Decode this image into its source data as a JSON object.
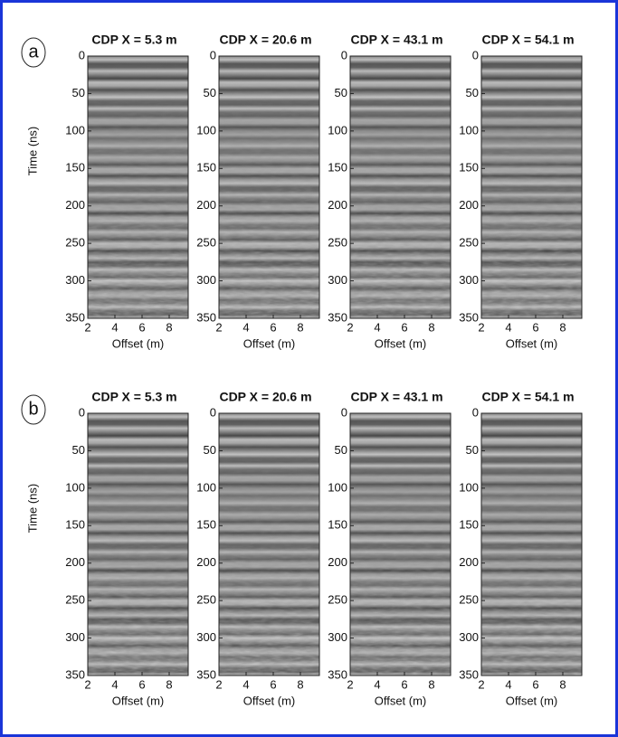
{
  "chart_data": [
    {
      "type": "image",
      "panel_label": "a",
      "title": "CDP X = 5.3 m",
      "xlabel": "Offset (m)",
      "ylabel": "Time (ns)",
      "xlim": [
        2,
        9.4
      ],
      "ylim": [
        0,
        350
      ],
      "y_inverted": true,
      "xticks": [
        2,
        4,
        6,
        8
      ],
      "yticks": [
        0,
        50,
        100,
        150,
        200,
        250,
        300,
        350
      ]
    },
    {
      "type": "image",
      "title": "CDP X = 20.6 m",
      "xlabel": "Offset (m)",
      "xlim": [
        2,
        9.4
      ],
      "ylim": [
        0,
        350
      ],
      "y_inverted": true,
      "xticks": [
        2,
        4,
        6,
        8
      ],
      "yticks": [
        0,
        50,
        100,
        150,
        200,
        250,
        300,
        350
      ]
    },
    {
      "type": "image",
      "title": "CDP X = 43.1 m",
      "xlabel": "Offset (m)",
      "xlim": [
        2,
        9.4
      ],
      "ylim": [
        0,
        350
      ],
      "y_inverted": true,
      "xticks": [
        2,
        4,
        6,
        8
      ],
      "yticks": [
        0,
        50,
        100,
        150,
        200,
        250,
        300,
        350
      ]
    },
    {
      "type": "image",
      "title": "CDP X = 54.1 m",
      "xlabel": "Offset (m)",
      "xlim": [
        2,
        9.4
      ],
      "ylim": [
        0,
        350
      ],
      "y_inverted": true,
      "xticks": [
        2,
        4,
        6,
        8
      ],
      "yticks": [
        0,
        50,
        100,
        150,
        200,
        250,
        300,
        350
      ]
    },
    {
      "type": "image",
      "panel_label": "b",
      "title": "CDP X = 5.3 m",
      "xlabel": "Offset (m)",
      "ylabel": "Time (ns)",
      "xlim": [
        2,
        9.4
      ],
      "ylim": [
        0,
        350
      ],
      "y_inverted": true,
      "xticks": [
        2,
        4,
        6,
        8
      ],
      "yticks": [
        0,
        50,
        100,
        150,
        200,
        250,
        300,
        350
      ]
    },
    {
      "type": "image",
      "title": "CDP X = 20.6 m",
      "xlabel": "Offset (m)",
      "xlim": [
        2,
        9.4
      ],
      "ylim": [
        0,
        350
      ],
      "y_inverted": true,
      "xticks": [
        2,
        4,
        6,
        8
      ],
      "yticks": [
        0,
        50,
        100,
        150,
        200,
        250,
        300,
        350
      ]
    },
    {
      "type": "image",
      "title": "CDP X = 43.1 m",
      "xlabel": "Offset (m)",
      "xlim": [
        2,
        9.4
      ],
      "ylim": [
        0,
        350
      ],
      "y_inverted": true,
      "xticks": [
        2,
        4,
        6,
        8
      ],
      "yticks": [
        0,
        50,
        100,
        150,
        200,
        250,
        300,
        350
      ]
    },
    {
      "type": "image",
      "title": "CDP X = 54.1 m",
      "xlabel": "Offset (m)",
      "xlim": [
        2,
        9.4
      ],
      "ylim": [
        0,
        350
      ],
      "y_inverted": true,
      "xticks": [
        2,
        4,
        6,
        8
      ],
      "yticks": [
        0,
        50,
        100,
        150,
        200,
        250,
        300,
        350
      ]
    }
  ]
}
